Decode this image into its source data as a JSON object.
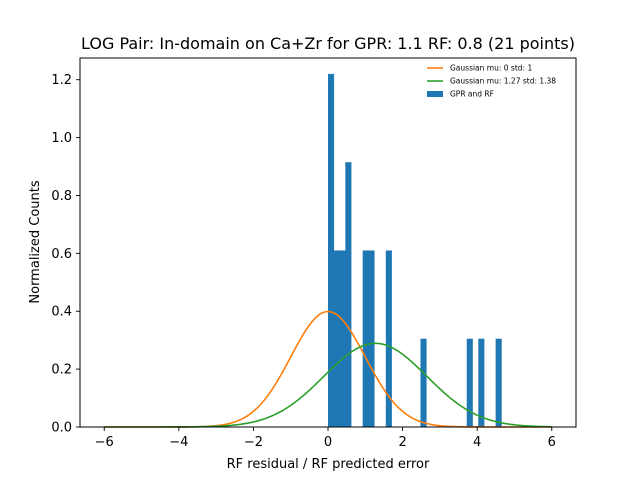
{
  "chart_data": {
    "type": "bar",
    "title": "LOG Pair: In-domain on Ca+Zr for GPR: 1.1 RF: 0.8 (21 points)",
    "xlabel": "RF residual / RF predicted error",
    "ylabel": "Normalized Counts",
    "xlim": [
      -6.65,
      6.65
    ],
    "ylim": [
      0,
      1.275
    ],
    "x_ticks": [
      -6,
      -4,
      -2,
      0,
      2,
      4,
      6
    ],
    "y_ticks": [
      0.0,
      0.2,
      0.4,
      0.6,
      0.8,
      1.0,
      1.2
    ],
    "grid": false,
    "legend_position": "top-right",
    "histogram": {
      "name": "GPR and RF",
      "color": "#1f77b4",
      "bins": [
        {
          "x0": 0.0,
          "x1": 0.155,
          "value": 1.22
        },
        {
          "x0": 0.155,
          "x1": 0.31,
          "value": 0.61
        },
        {
          "x0": 0.31,
          "x1": 0.465,
          "value": 0.61
        },
        {
          "x0": 0.465,
          "x1": 0.62,
          "value": 0.915
        },
        {
          "x0": 0.93,
          "x1": 1.085,
          "value": 0.61
        },
        {
          "x0": 1.085,
          "x1": 1.24,
          "value": 0.61
        },
        {
          "x0": 1.55,
          "x1": 1.705,
          "value": 0.61
        },
        {
          "x0": 2.48,
          "x1": 2.635,
          "value": 0.305
        },
        {
          "x0": 3.72,
          "x1": 3.875,
          "value": 0.305
        },
        {
          "x0": 4.03,
          "x1": 4.185,
          "value": 0.305
        },
        {
          "x0": 4.495,
          "x1": 4.65,
          "value": 0.305
        }
      ]
    },
    "curves": [
      {
        "name": "Gaussian mu: 0 std: 1",
        "color": "#ff7f0e",
        "mu": 0,
        "std": 1,
        "x_range": [
          -6,
          6
        ]
      },
      {
        "name": "Gaussian mu: 1.27 std: 1.38",
        "color": "#2ca02c",
        "mu": 1.27,
        "std": 1.38,
        "x_range": [
          -6,
          6
        ]
      }
    ]
  }
}
